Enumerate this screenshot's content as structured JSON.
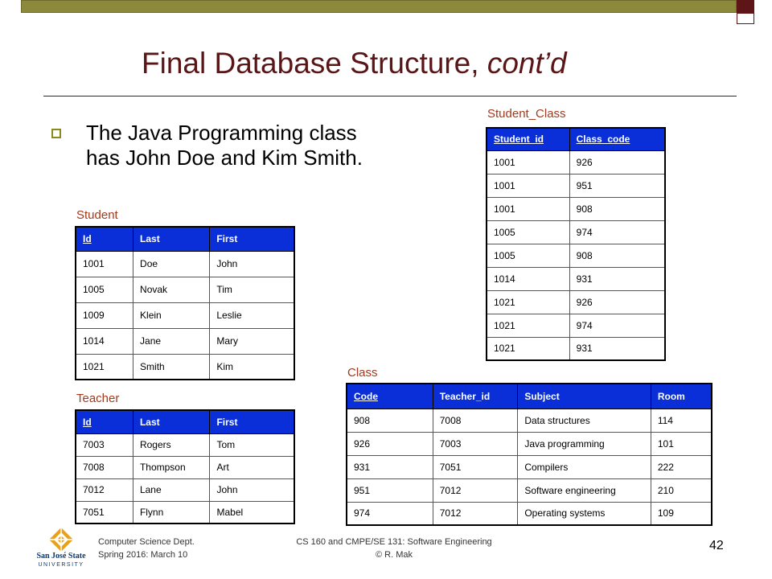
{
  "slide": {
    "title_main": "Final Database Structure,",
    "title_italic": "cont’d",
    "bullet_line1": "The Java Programming class",
    "bullet_line2": "has John Doe and Kim Smith."
  },
  "tables": {
    "student": {
      "caption": "Student",
      "headers": [
        "Id",
        "Last",
        "First"
      ],
      "rows": [
        [
          "1001",
          "Doe",
          "John"
        ],
        [
          "1005",
          "Novak",
          "Tim"
        ],
        [
          "1009",
          "Klein",
          "Leslie"
        ],
        [
          "1014",
          "Jane",
          "Mary"
        ],
        [
          "1021",
          "Smith",
          "Kim"
        ]
      ]
    },
    "teacher": {
      "caption": "Teacher",
      "headers": [
        "Id",
        "Last",
        "First"
      ],
      "rows": [
        [
          "7003",
          "Rogers",
          "Tom"
        ],
        [
          "7008",
          "Thompson",
          "Art"
        ],
        [
          "7012",
          "Lane",
          "John"
        ],
        [
          "7051",
          "Flynn",
          "Mabel"
        ]
      ]
    },
    "student_class": {
      "caption": "Student_Class",
      "headers": [
        "Student_id",
        "Class_code"
      ],
      "rows": [
        [
          "1001",
          "926"
        ],
        [
          "1001",
          "951"
        ],
        [
          "1001",
          "908"
        ],
        [
          "1005",
          "974"
        ],
        [
          "1005",
          "908"
        ],
        [
          "1014",
          "931"
        ],
        [
          "1021",
          "926"
        ],
        [
          "1021",
          "974"
        ],
        [
          "1021",
          "931"
        ]
      ]
    },
    "class": {
      "caption": "Class",
      "headers": [
        "Code",
        "Teacher_id",
        "Subject",
        "Room"
      ],
      "rows": [
        [
          "908",
          "7008",
          "Data structures",
          "114"
        ],
        [
          "926",
          "7003",
          "Java programming",
          "101"
        ],
        [
          "931",
          "7051",
          "Compilers",
          "222"
        ],
        [
          "951",
          "7012",
          "Software engineering",
          "210"
        ],
        [
          "974",
          "7012",
          "Operating systems",
          "109"
        ]
      ]
    }
  },
  "footer": {
    "left_line1": "Computer Science Dept.",
    "left_line2": "Spring 2016: March 10",
    "mid_line1": "CS 160 and CMPE/SE 131: Software Engineering",
    "mid_line2": "© R. Mak",
    "page_number": "42",
    "logo_text_1": "San José State",
    "logo_text_2": "UNIVERSITY"
  },
  "colors": {
    "header_blue": "#0a2fd9",
    "title_maroon": "#5a1517",
    "caption_orange": "#a23a1b",
    "bar_olive": "#8c8a3a",
    "logo_gold": "#e8a21a"
  }
}
